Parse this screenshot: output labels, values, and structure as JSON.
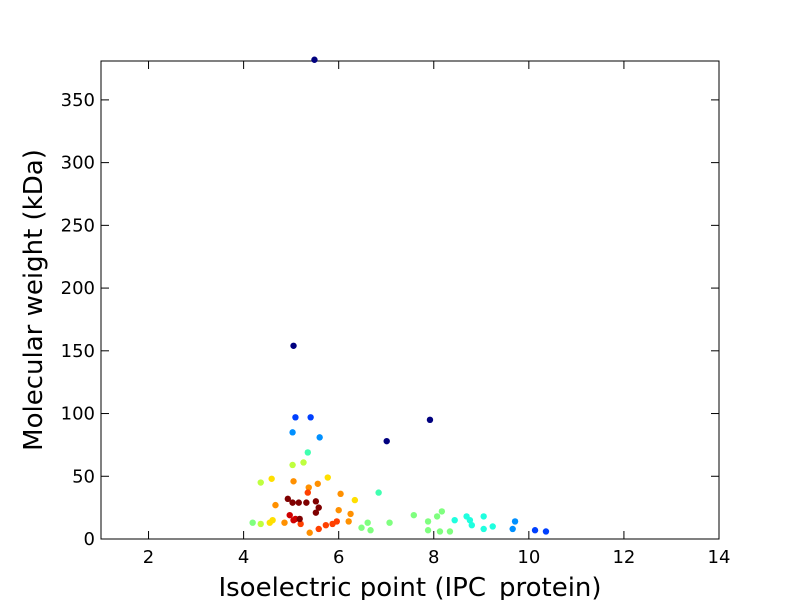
{
  "chart_data": {
    "type": "scatter",
    "x_label": "Isoelectric point (IPC_protein)",
    "y_label": "Molecular weight (kDa)",
    "xlim": [
      1,
      14
    ],
    "ylim": [
      0,
      381
    ],
    "xticks": [
      2,
      4,
      6,
      8,
      10,
      12,
      14
    ],
    "yticks": [
      0,
      50,
      100,
      150,
      200,
      250,
      300,
      350
    ],
    "series": [
      {
        "color": "#00007f",
        "x": [
          5.49,
          5.05,
          7.01,
          7.92
        ],
        "values": [
          382,
          154,
          78,
          95
        ]
      },
      {
        "color": "#0040ff",
        "x": [
          5.09,
          5.41,
          10.13,
          10.36
        ],
        "values": [
          97,
          97,
          7,
          6
        ]
      },
      {
        "color": "#0090ff",
        "x": [
          5.03,
          5.6,
          9.71,
          9.66
        ],
        "values": [
          85,
          81,
          14,
          8
        ]
      },
      {
        "color": "#1fffdf",
        "x": [
          9.05,
          9.24,
          9.05,
          8.76,
          8.69,
          8.8,
          8.44
        ],
        "values": [
          18,
          10,
          8,
          15,
          18,
          11,
          15
        ]
      },
      {
        "color": "#40ffb0",
        "x": [
          5.35,
          6.84
        ],
        "values": [
          69,
          37
        ]
      },
      {
        "color": "#7fff7f",
        "x": [
          7.58,
          7.88,
          8.07,
          8.17,
          7.88,
          8.13,
          8.34,
          7.07,
          6.67,
          6.61,
          6.48,
          4.19
        ],
        "values": [
          19,
          14,
          18,
          22,
          7,
          6,
          6,
          13,
          7,
          13,
          9,
          13
        ]
      },
      {
        "color": "#bfff3f",
        "x": [
          5.03,
          5.26,
          4.36,
          4.36
        ],
        "values": [
          59,
          61,
          45,
          12
        ]
      },
      {
        "color": "#ffdf00",
        "x": [
          4.59,
          5.77,
          6.34,
          4.55,
          4.61
        ],
        "values": [
          48,
          49,
          31,
          13,
          15
        ]
      },
      {
        "color": "#ff9000",
        "x": [
          5.05,
          5.56,
          6.04,
          4.67,
          5.37,
          6.25,
          6.21,
          6.0,
          4.86,
          5.39
        ],
        "values": [
          46,
          44,
          36,
          27,
          41,
          20,
          14,
          23,
          13,
          5
        ]
      },
      {
        "color": "#ff4000",
        "x": [
          5.35,
          5.58,
          5.73,
          5.87,
          5.96,
          5.2
        ],
        "values": [
          37,
          8,
          11,
          12,
          14,
          12
        ]
      },
      {
        "color": "#d00000",
        "x": [
          4.97,
          5.09,
          5.05
        ],
        "values": [
          19,
          16,
          15
        ]
      },
      {
        "color": "#7f0000",
        "x": [
          4.93,
          5.03,
          5.16,
          5.32,
          5.52,
          5.58,
          5.52,
          5.18
        ],
        "values": [
          32,
          29,
          29,
          29,
          30,
          25,
          21,
          16
        ]
      }
    ]
  }
}
